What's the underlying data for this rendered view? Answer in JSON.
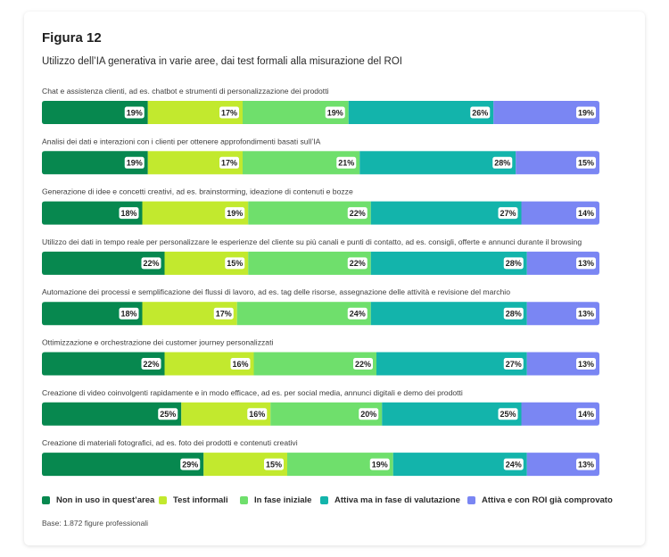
{
  "figure_label": "Figura 12",
  "base_note": "Base: 1.872 figure professionali",
  "chart_data": {
    "type": "bar",
    "orientation": "horizontal",
    "stacked": true,
    "normalized_to_100": true,
    "title": "Utilizzo dell’IA generativa in varie aree, dai test formali alla misurazione del ROI",
    "value_suffix": "%",
    "legend_position": "bottom",
    "grid": false,
    "categories": [
      "Chat e assistenza clienti, ad es. chatbot e strumenti di personalizzazione dei prodotti",
      "Analisi dei dati e interazioni con i clienti per ottenere approfondimenti basati sull’IA",
      "Generazione di idee e concetti creativi, ad es. brainstorming, ideazione di contenuti e bozze",
      "Utilizzo dei dati in tempo reale per personalizzare le esperienze del cliente su più canali e punti di contatto, ad es. consigli, offerte e annunci durante il browsing",
      "Automazione dei processi e semplificazione dei flussi di lavoro, ad es. tag delle risorse, assegnazione delle attività e revisione del marchio",
      "Ottimizzazione e orchestrazione dei customer journey personalizzati",
      "Creazione di video coinvolgenti rapidamente e in modo efficace, ad es. per social media, annunci digitali e demo dei prodotti",
      "Creazione di materiali fotografici, ad es. foto dei prodotti e contenuti creativi"
    ],
    "series": [
      {
        "name": "Non in uso in quest’area",
        "color": "#07884f",
        "values": [
          19,
          19,
          18,
          22,
          18,
          22,
          25,
          29
        ]
      },
      {
        "name": "Test informali",
        "color": "#c2e92e",
        "values": [
          17,
          17,
          19,
          15,
          17,
          16,
          16,
          15
        ]
      },
      {
        "name": "In fase iniziale",
        "color": "#6fdf6c",
        "values": [
          19,
          21,
          22,
          22,
          24,
          22,
          20,
          19
        ]
      },
      {
        "name": "Attiva ma in fase di valutazione",
        "color": "#13b4ab",
        "values": [
          26,
          28,
          27,
          28,
          28,
          27,
          25,
          24
        ]
      },
      {
        "name": "Attiva e con ROI già comprovato",
        "color": "#7a86f3",
        "values": [
          19,
          15,
          14,
          13,
          13,
          13,
          14,
          13
        ]
      }
    ]
  }
}
